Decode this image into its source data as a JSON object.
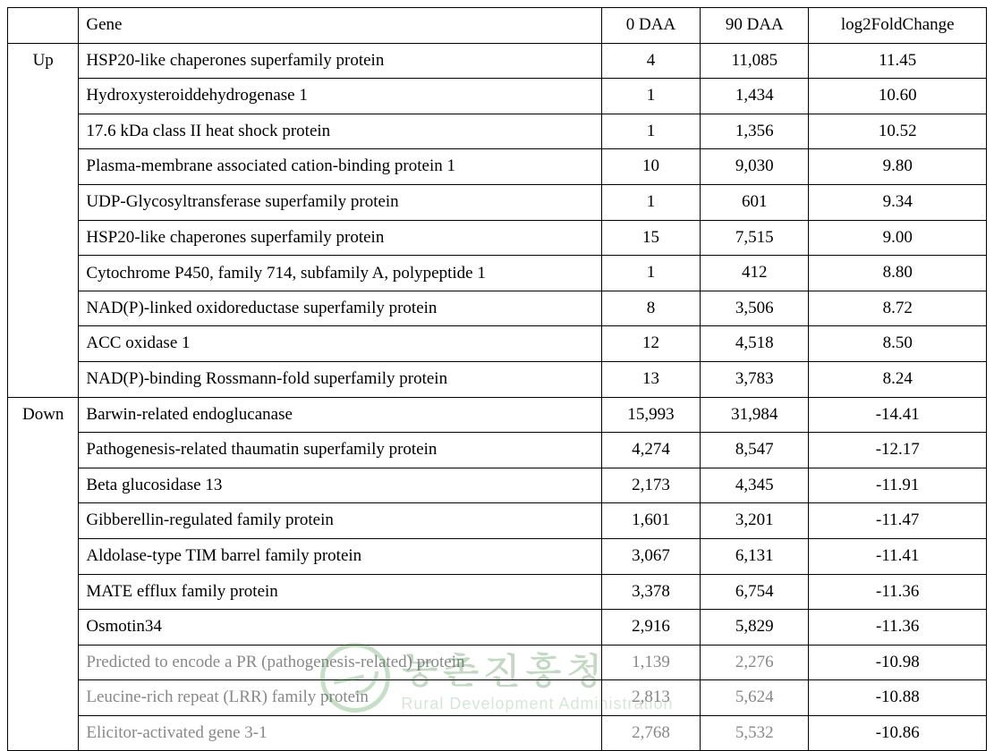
{
  "table": {
    "header": {
      "direction": "",
      "gene": "Gene",
      "daa0": "0 DAA",
      "daa90": "90 DAA",
      "log2": "log2FoldChange"
    },
    "groups": [
      {
        "direction": "Up",
        "rows": [
          {
            "gene": "HSP20-like chaperones superfamily protein",
            "daa0": "4",
            "daa90": "11,085",
            "log2": "11.45",
            "multiline": false
          },
          {
            "gene": "Hydroxysteroiddehydrogenase 1",
            "daa0": "1",
            "daa90": "1,434",
            "log2": "10.60",
            "multiline": false
          },
          {
            "gene": "17.6 kDa class II heat shock protein",
            "daa0": "1",
            "daa90": "1,356",
            "log2": "10.52",
            "multiline": false
          },
          {
            "gene": "Plasma-membrane associated cation-binding protein 1",
            "daa0": "10",
            "daa90": "9,030",
            "log2": "9.80",
            "multiline": false
          },
          {
            "gene": "UDP-Glycosyltransferase superfamily protein",
            "daa0": "1",
            "daa90": "601",
            "log2": "9.34",
            "multiline": false
          },
          {
            "gene": "HSP20-like chaperones superfamily protein",
            "daa0": "15",
            "daa90": "7,515",
            "log2": "9.00",
            "multiline": false
          },
          {
            "gene": "Cytochrome P450, family 714, subfamily A, polypeptide 1",
            "daa0": "1",
            "daa90": "412",
            "log2": "8.80",
            "multiline": true
          },
          {
            "gene": "NAD(P)-linked oxidoreductase superfamily protein",
            "daa0": "8",
            "daa90": "3,506",
            "log2": "8.72",
            "multiline": false
          },
          {
            "gene": "ACC oxidase 1",
            "daa0": "12",
            "daa90": "4,518",
            "log2": "8.50",
            "multiline": false
          },
          {
            "gene": "NAD(P)-binding Rossmann-fold superfamily protein",
            "daa0": "13",
            "daa90": "3,783",
            "log2": "8.24",
            "multiline": false
          }
        ]
      },
      {
        "direction": "Down",
        "rows": [
          {
            "gene": "Barwin-related endoglucanase",
            "daa0": "15,993",
            "daa90": "31,984",
            "log2": "-14.41",
            "multiline": false
          },
          {
            "gene": "Pathogenesis-related thaumatin superfamily protein",
            "daa0": "4,274",
            "daa90": "8,547",
            "log2": "-12.17",
            "multiline": false
          },
          {
            "gene": "Beta glucosidase 13",
            "daa0": "2,173",
            "daa90": "4,345",
            "log2": "-11.91",
            "multiline": false
          },
          {
            "gene": "Gibberellin-regulated family protein",
            "daa0": "1,601",
            "daa90": "3,201",
            "log2": "-11.47",
            "multiline": false
          },
          {
            "gene": "Aldolase-type TIM barrel family protein",
            "daa0": "3,067",
            "daa90": "6,131",
            "log2": "-11.41",
            "multiline": false
          },
          {
            "gene": "MATE efflux family protein",
            "daa0": "3,378",
            "daa90": "6,754",
            "log2": "-11.36",
            "multiline": false
          },
          {
            "gene": "Osmotin34",
            "daa0": "2,916",
            "daa90": "5,829",
            "log2": "-11.36",
            "multiline": false
          },
          {
            "gene": "Predicted to encode a PR (pathogenesis-related) protein",
            "daa0": "1,139",
            "daa90": "2,276",
            "log2": "-10.98",
            "multiline": true,
            "faded": true
          },
          {
            "gene": "Leucine-rich repeat (LRR) family protein",
            "daa0": "2,813",
            "daa90": "5,624",
            "log2": "-10.88",
            "multiline": false,
            "faded": true
          },
          {
            "gene": "Elicitor-activated gene 3-1",
            "daa0": "2,768",
            "daa90": "5,532",
            "log2": "-10.86",
            "multiline": false,
            "faded": true
          }
        ]
      }
    ]
  },
  "watermark": {
    "kr": "농촌진흥청",
    "en": "Rural Development Administration",
    "logo_color": "#3a8a3a",
    "text_color": "#2a7a2a"
  }
}
